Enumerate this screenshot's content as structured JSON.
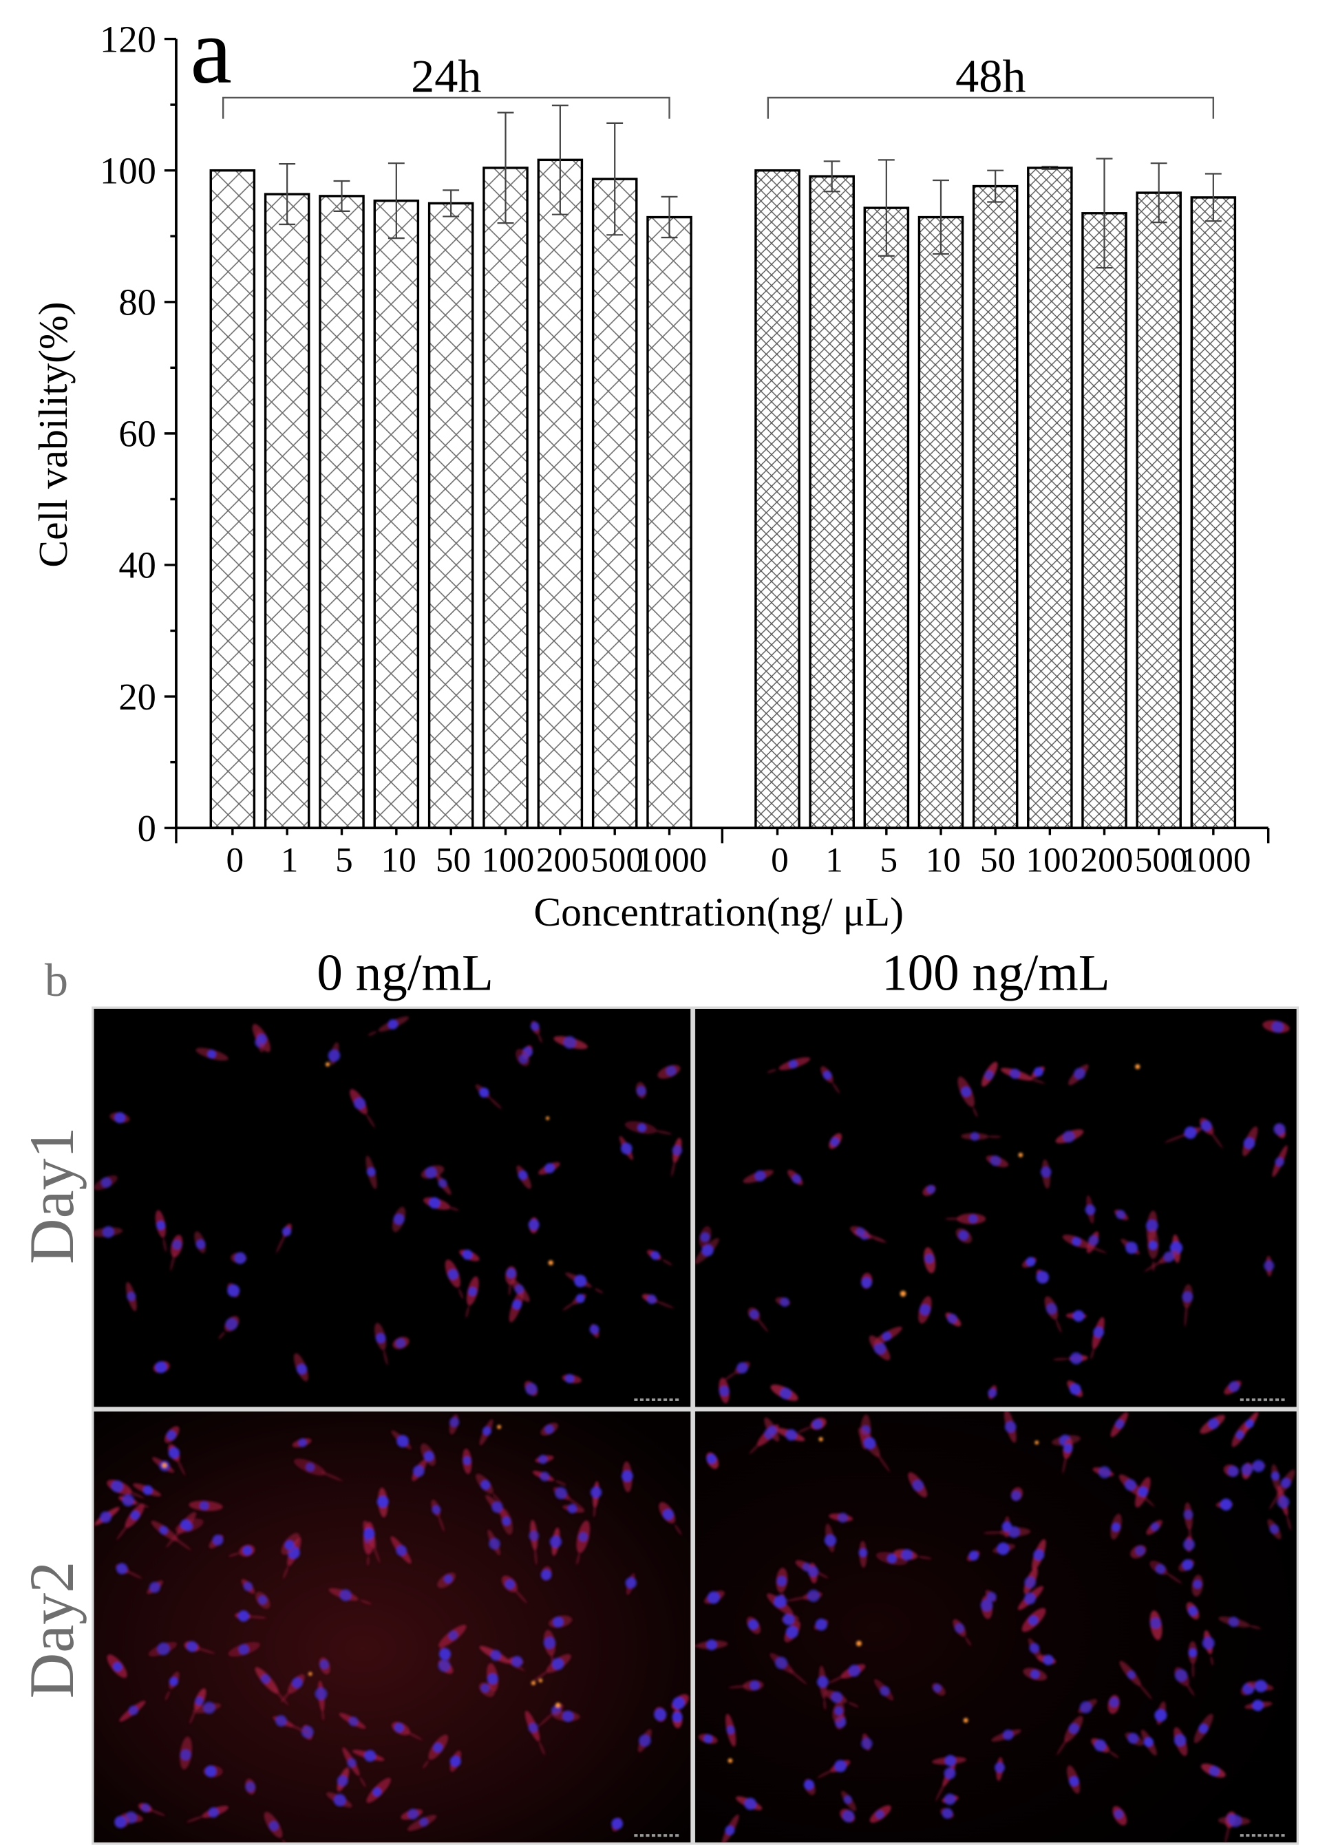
{
  "panel_a_label": "a",
  "panel_b_label": "b",
  "chart_data": {
    "type": "bar",
    "xlabel": "Concentration(ng/ μL)",
    "ylabel": "Cell vability(%)",
    "ylim": [
      0,
      120
    ],
    "yticks": [
      0,
      20,
      40,
      60,
      80,
      100,
      120
    ],
    "grid": false,
    "categories": [
      "0",
      "1",
      "5",
      "10",
      "50",
      "100",
      "200",
      "500",
      "1000"
    ],
    "series": [
      {
        "name": "24h",
        "values": [
          100,
          96.4,
          96.1,
          95.4,
          95.0,
          100.4,
          101.6,
          98.7,
          92.9
        ],
        "errors": [
          0,
          4.6,
          2.3,
          5.7,
          2.0,
          8.4,
          8.3,
          8.5,
          3.1
        ]
      },
      {
        "name": "48h",
        "values": [
          100,
          99.1,
          94.3,
          92.9,
          97.6,
          100.4,
          93.5,
          96.6,
          95.9
        ],
        "errors": [
          0,
          2.3,
          7.3,
          5.6,
          2.4,
          0.2,
          8.3,
          4.5,
          3.6
        ]
      }
    ],
    "bar_edge_color": "#000000",
    "bar_fill_color": "#ffffff"
  },
  "micrographs": {
    "columns": [
      "0 ng/mL",
      "100 ng/mL"
    ],
    "rows": [
      "Day1",
      "Day2"
    ],
    "background_color": "#000000",
    "nucleus_color": "#3f30d6",
    "cytoplasm_color": "#a11d3f",
    "speck_color": "#ff9a3c"
  }
}
